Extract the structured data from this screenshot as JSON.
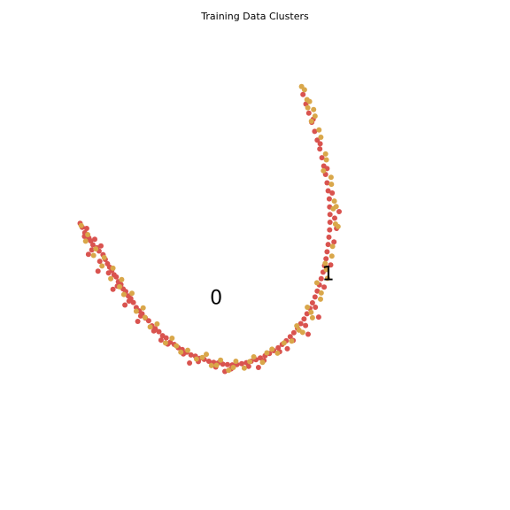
{
  "chart_data": {
    "type": "scatter",
    "title": "Training Data Clusters",
    "xlabel": "",
    "ylabel": "",
    "axes_visible": false,
    "grid": false,
    "xlim": [
      0,
      100
    ],
    "ylim": [
      0,
      100
    ],
    "colors": {
      "class_a": "#d9534f",
      "class_b": "#d9a74a"
    },
    "annotations": [
      {
        "text": "0",
        "x": 37.9,
        "y": 36.1
      },
      {
        "text": "1",
        "x": 68.6,
        "y": 42.6
      }
    ],
    "series": [
      {
        "color": "#d9534f",
        "points": [
          [
            0.6,
            58.2
          ],
          [
            1.2,
            57.1
          ],
          [
            1.9,
            55.6
          ],
          [
            2.4,
            56.8
          ],
          [
            3.0,
            54.2
          ],
          [
            3.5,
            53.4
          ],
          [
            4.1,
            52.3
          ],
          [
            4.6,
            53.8
          ],
          [
            5.2,
            51.5
          ],
          [
            5.8,
            50.6
          ],
          [
            6.3,
            52.0
          ],
          [
            6.9,
            49.6
          ],
          [
            7.5,
            48.3
          ],
          [
            8.1,
            47.1
          ],
          [
            8.7,
            46.2
          ],
          [
            9.3,
            45.3
          ],
          [
            9.9,
            44.1
          ],
          [
            10.5,
            43.5
          ],
          [
            11.1,
            42.2
          ],
          [
            11.8,
            41.4
          ],
          [
            12.4,
            40.2
          ],
          [
            13.1,
            39.5
          ],
          [
            13.8,
            38.3
          ],
          [
            14.5,
            37.6
          ],
          [
            15.2,
            36.5
          ],
          [
            16.0,
            35.1
          ],
          [
            16.8,
            34.2
          ],
          [
            17.6,
            33.4
          ],
          [
            18.5,
            32.2
          ],
          [
            19.4,
            31.5
          ],
          [
            20.3,
            30.1
          ],
          [
            21.2,
            29.3
          ],
          [
            22.2,
            28.5
          ],
          [
            23.2,
            27.4
          ],
          [
            24.2,
            26.8
          ],
          [
            25.3,
            25.6
          ],
          [
            26.4,
            25.0
          ],
          [
            27.5,
            24.1
          ],
          [
            28.6,
            23.6
          ],
          [
            29.8,
            22.9
          ],
          [
            31.0,
            22.1
          ],
          [
            32.2,
            21.8
          ],
          [
            33.4,
            21.2
          ],
          [
            34.6,
            20.9
          ],
          [
            35.9,
            20.4
          ],
          [
            37.2,
            20.1
          ],
          [
            38.4,
            19.9
          ],
          [
            39.7,
            19.6
          ],
          [
            41.0,
            19.5
          ],
          [
            42.3,
            19.4
          ],
          [
            43.6,
            19.5
          ],
          [
            44.9,
            19.7
          ],
          [
            46.2,
            20.0
          ],
          [
            47.5,
            20.4
          ],
          [
            48.8,
            20.8
          ],
          [
            50.0,
            21.3
          ],
          [
            51.3,
            21.9
          ],
          [
            52.5,
            22.5
          ],
          [
            53.7,
            23.3
          ],
          [
            54.9,
            24.1
          ],
          [
            56.0,
            25.0
          ],
          [
            57.1,
            26.0
          ],
          [
            58.2,
            27.1
          ],
          [
            59.2,
            28.2
          ],
          [
            60.2,
            29.4
          ],
          [
            61.1,
            30.7
          ],
          [
            62.0,
            32.0
          ],
          [
            62.8,
            33.4
          ],
          [
            63.6,
            34.9
          ],
          [
            64.3,
            36.4
          ],
          [
            65.0,
            38.0
          ],
          [
            65.6,
            39.6
          ],
          [
            66.2,
            41.3
          ],
          [
            66.7,
            43.0
          ],
          [
            67.2,
            44.8
          ],
          [
            67.6,
            46.6
          ],
          [
            68.0,
            48.5
          ],
          [
            68.3,
            50.4
          ],
          [
            68.6,
            52.4
          ],
          [
            68.8,
            54.4
          ],
          [
            69.0,
            56.4
          ],
          [
            69.1,
            58.5
          ],
          [
            69.1,
            60.6
          ],
          [
            69.0,
            62.7
          ],
          [
            68.9,
            64.9
          ],
          [
            68.6,
            67.1
          ],
          [
            68.3,
            69.3
          ],
          [
            67.9,
            71.6
          ],
          [
            67.4,
            73.9
          ],
          [
            66.9,
            76.2
          ],
          [
            66.3,
            78.6
          ],
          [
            65.6,
            81.0
          ],
          [
            64.9,
            83.4
          ],
          [
            64.1,
            85.9
          ],
          [
            63.3,
            88.4
          ],
          [
            62.5,
            90.9
          ],
          [
            61.7,
            93.5
          ],
          [
            1.8,
            54.6
          ],
          [
            3.8,
            50.9
          ],
          [
            6.0,
            47.8
          ],
          [
            8.4,
            44.6
          ],
          [
            10.8,
            41.0
          ],
          [
            14.0,
            36.9
          ],
          [
            17.2,
            32.8
          ],
          [
            20.8,
            28.7
          ],
          [
            24.6,
            25.1
          ],
          [
            28.9,
            22.4
          ],
          [
            33.0,
            20.3
          ],
          [
            37.8,
            18.8
          ],
          [
            42.0,
            18.3
          ],
          [
            46.8,
            19.0
          ],
          [
            51.0,
            20.6
          ],
          [
            55.3,
            23.0
          ],
          [
            59.0,
            26.1
          ],
          [
            62.4,
            30.2
          ],
          [
            65.1,
            35.2
          ],
          [
            67.5,
            40.7
          ],
          [
            69.3,
            46.8
          ],
          [
            70.2,
            53.1
          ],
          [
            70.4,
            59.6
          ],
          [
            69.7,
            66.5
          ],
          [
            68.3,
            73.2
          ],
          [
            66.4,
            80.0
          ],
          [
            64.5,
            86.7
          ],
          [
            70.9,
            56.8
          ],
          [
            71.6,
            61.4
          ],
          [
            66.0,
            32.5
          ],
          [
            63.1,
            27.8
          ],
          [
            57.4,
            23.8
          ],
          [
            49.5,
            18.7
          ],
          [
            40.3,
            17.6
          ],
          [
            30.6,
            19.9
          ],
          [
            22.8,
            26.2
          ],
          [
            16.4,
            31.3
          ],
          [
            12.9,
            35.8
          ],
          [
            9.6,
            40.1
          ],
          [
            5.5,
            45.1
          ],
          [
            2.9,
            49.7
          ]
        ]
      },
      {
        "color": "#d9a74a",
        "points": [
          [
            0.9,
            57.6
          ],
          [
            2.7,
            55.1
          ],
          [
            4.9,
            51.2
          ],
          [
            7.2,
            48.8
          ],
          [
            9.6,
            45.9
          ],
          [
            12.0,
            42.8
          ],
          [
            14.8,
            39.0
          ],
          [
            17.9,
            35.0
          ],
          [
            21.7,
            30.6
          ],
          [
            25.8,
            26.7
          ],
          [
            30.1,
            23.4
          ],
          [
            34.1,
            21.4
          ],
          [
            38.0,
            19.3
          ],
          [
            42.6,
            18.7
          ],
          [
            47.1,
            20.3
          ],
          [
            51.8,
            22.7
          ],
          [
            56.5,
            25.4
          ],
          [
            60.6,
            28.9
          ],
          [
            63.9,
            33.8
          ],
          [
            66.7,
            39.1
          ],
          [
            68.1,
            45.5
          ],
          [
            69.8,
            51.9
          ],
          [
            70.6,
            58.0
          ],
          [
            70.3,
            64.3
          ],
          [
            69.4,
            70.8
          ],
          [
            67.9,
            77.2
          ],
          [
            66.1,
            83.8
          ],
          [
            64.6,
            89.4
          ],
          [
            62.8,
            92.1
          ],
          [
            62.1,
            94.8
          ],
          [
            61.3,
            95.7
          ],
          [
            63.5,
            91.6
          ],
          [
            65.0,
            87.6
          ],
          [
            66.6,
            81.8
          ],
          [
            68.1,
            75.6
          ],
          [
            69.5,
            68.9
          ],
          [
            70.0,
            62.2
          ],
          [
            71.3,
            57.3
          ],
          [
            69.6,
            49.2
          ],
          [
            68.4,
            43.1
          ],
          [
            66.5,
            37.4
          ],
          [
            64.3,
            32.3
          ],
          [
            61.6,
            28.3
          ],
          [
            58.6,
            25.9
          ],
          [
            54.7,
            22.6
          ],
          [
            50.6,
            20.1
          ],
          [
            45.6,
            18.5
          ],
          [
            41.3,
            17.9
          ],
          [
            36.6,
            19.2
          ],
          [
            32.5,
            21.0
          ],
          [
            28.2,
            22.9
          ],
          [
            24.0,
            25.4
          ],
          [
            19.8,
            29.8
          ],
          [
            16.0,
            34.1
          ],
          [
            12.6,
            38.7
          ],
          [
            9.0,
            43.0
          ],
          [
            6.6,
            46.5
          ],
          [
            4.3,
            49.4
          ],
          [
            2.1,
            53.3
          ],
          [
            63.0,
            89.9
          ],
          [
            64.0,
            86.2
          ],
          [
            67.3,
            72.6
          ],
          [
            70.8,
            62.8
          ],
          [
            67.8,
            47.2
          ],
          [
            65.5,
            41.9
          ],
          [
            62.9,
            35.2
          ],
          [
            60.0,
            30.1
          ],
          [
            53.2,
            23.7
          ],
          [
            48.2,
            21.6
          ],
          [
            43.3,
            20.4
          ],
          [
            39.1,
            20.7
          ],
          [
            35.2,
            22.3
          ],
          [
            27.0,
            24.6
          ],
          [
            18.4,
            32.4
          ],
          [
            11.4,
            40.8
          ]
        ]
      }
    ]
  }
}
